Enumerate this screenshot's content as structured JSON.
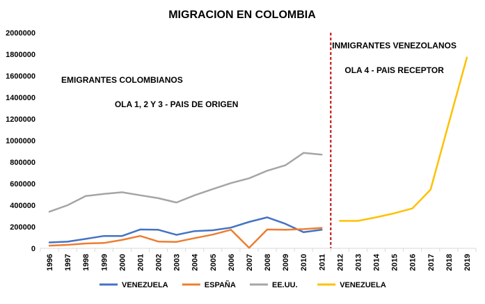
{
  "chart_data": {
    "type": "line",
    "title": "MIGRACION  EN COLOMBIA",
    "xlabel": "",
    "ylabel": "",
    "ylim": [
      0,
      2000000
    ],
    "yticks": [
      0,
      200000,
      400000,
      600000,
      800000,
      1000000,
      1200000,
      1400000,
      1600000,
      1800000,
      2000000
    ],
    "ytick_labels": [
      "0",
      "200000",
      "400000",
      "600000",
      "800000",
      "1000000",
      "1200000",
      "1400000",
      "1600000",
      "1800000",
      "2000000"
    ],
    "categories": [
      "1996",
      "1997",
      "1998",
      "1999",
      "2000",
      "2001",
      "2002",
      "2003",
      "2004",
      "2005",
      "2006",
      "2007",
      "2008",
      "2009",
      "2010",
      "2011",
      "2012",
      "2013",
      "2014",
      "2015",
      "2016",
      "2017",
      "2018",
      "2019"
    ],
    "divider_at": "2011",
    "legend_position": "bottom",
    "series": [
      {
        "name": "VENEZUELA",
        "color": "#4472C4",
        "values": [
          55000,
          62000,
          88000,
          115000,
          115000,
          175000,
          172000,
          125000,
          160000,
          168000,
          192000,
          245000,
          288000,
          228000,
          150000,
          172000,
          null,
          null,
          null,
          null,
          null,
          null,
          null,
          null
        ]
      },
      {
        "name": "ESPAÑA",
        "color": "#ED7D31",
        "values": [
          25000,
          32000,
          45000,
          50000,
          78000,
          115000,
          63000,
          60000,
          95000,
          128000,
          172000,
          5000,
          175000,
          173000,
          178000,
          190000,
          null,
          null,
          null,
          null,
          null,
          null,
          null,
          null
        ]
      },
      {
        "name": "EE.UU.",
        "color": "#A5A5A5",
        "values": [
          340000,
          400000,
          485000,
          505000,
          520000,
          492000,
          465000,
          425000,
          492000,
          550000,
          605000,
          650000,
          720000,
          770000,
          885000,
          870000,
          null,
          null,
          null,
          null,
          null,
          null,
          null,
          null
        ]
      },
      {
        "name": "VENEZUELA",
        "color": "#FFC000",
        "values": [
          null,
          null,
          null,
          null,
          null,
          null,
          null,
          null,
          null,
          null,
          null,
          null,
          null,
          null,
          null,
          null,
          255000,
          255000,
          288000,
          325000,
          370000,
          545000,
          1160000,
          1770000
        ]
      }
    ],
    "annotations": [
      {
        "text": "EMIGRANTES COLOMBIANOS",
        "anchor_year": "2000",
        "value": 1535000
      },
      {
        "text": "OLA 1, 2 Y 3 - PAIS DE ORIGEN",
        "anchor_year": "2003",
        "value": 1310000
      },
      {
        "text": "INMIGRANTES VENEZOLANOS",
        "anchor_year": "2015",
        "value": 1855000
      },
      {
        "text": "OLA 4 - PAIS RECEPTOR",
        "anchor_year": "2015",
        "value": 1625000
      }
    ]
  }
}
